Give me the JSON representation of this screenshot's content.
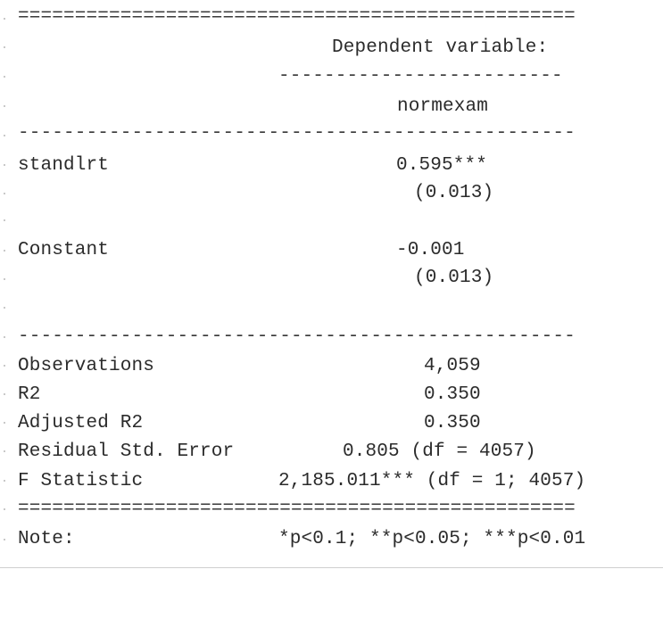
{
  "table": {
    "rule_double": "=================================================",
    "rule_single": "-------------------------------------------------",
    "rule_sub": "-------------------------",
    "header": "Dependent variable:",
    "dep_var": "normexam",
    "rows": [
      {
        "label": "standlrt",
        "coef": "0.595***",
        "se": "(0.013)"
      },
      {
        "label": "Constant",
        "coef": "-0.001",
        "se": "(0.013)"
      }
    ],
    "stats": [
      {
        "label": "Observations",
        "value": "4,059"
      },
      {
        "label": "R2",
        "value": "0.350"
      },
      {
        "label": "Adjusted R2",
        "value": "0.350"
      },
      {
        "label": "Residual Std. Error",
        "value": "0.805 (df = 4057)"
      },
      {
        "label": "F Statistic",
        "value": "2,185.011*** (df = 1; 4057)"
      }
    ],
    "note_label": "Note:",
    "note_text": "*p<0.1; **p<0.05; ***p<0.01"
  }
}
